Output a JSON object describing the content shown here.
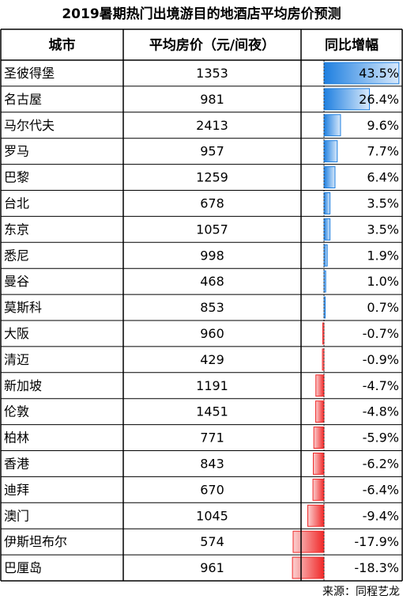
{
  "title": "2019暑期热门出境游目的地酒店平均房价预测",
  "table": {
    "headers": [
      "城市",
      "平均房价（元/间夜）",
      "同比增幅"
    ],
    "rows": [
      {
        "city": "圣彼得堡",
        "price": 1353,
        "change": 43.5,
        "change_label": "43.5%"
      },
      {
        "city": "名古屋",
        "price": 981,
        "change": 26.4,
        "change_label": "26.4%"
      },
      {
        "city": "马尔代夫",
        "price": 2413,
        "change": 9.6,
        "change_label": "9.6%"
      },
      {
        "city": "罗马",
        "price": 957,
        "change": 7.7,
        "change_label": "7.7%"
      },
      {
        "city": "巴黎",
        "price": 1259,
        "change": 6.4,
        "change_label": "6.4%"
      },
      {
        "city": "台北",
        "price": 678,
        "change": 3.5,
        "change_label": "3.5%"
      },
      {
        "city": "东京",
        "price": 1057,
        "change": 3.5,
        "change_label": "3.5%"
      },
      {
        "city": "悉尼",
        "price": 998,
        "change": 1.9,
        "change_label": "1.9%"
      },
      {
        "city": "曼谷",
        "price": 468,
        "change": 1.0,
        "change_label": "1.0%"
      },
      {
        "city": "莫斯科",
        "price": 853,
        "change": 0.7,
        "change_label": "0.7%"
      },
      {
        "city": "大阪",
        "price": 960,
        "change": -0.7,
        "change_label": "-0.7%"
      },
      {
        "city": "清迈",
        "price": 429,
        "change": -0.9,
        "change_label": "-0.9%"
      },
      {
        "city": "新加坡",
        "price": 1191,
        "change": -4.7,
        "change_label": "-4.7%"
      },
      {
        "city": "伦敦",
        "price": 1451,
        "change": -4.8,
        "change_label": "-4.8%"
      },
      {
        "city": "柏林",
        "price": 771,
        "change": -5.9,
        "change_label": "-5.9%"
      },
      {
        "city": "香港",
        "price": 843,
        "change": -6.2,
        "change_label": "-6.2%"
      },
      {
        "city": "迪拜",
        "price": 670,
        "change": -6.4,
        "change_label": "-6.4%"
      },
      {
        "city": "澳门",
        "price": 1045,
        "change": -9.4,
        "change_label": "-9.4%"
      },
      {
        "city": "伊斯坦布尔",
        "price": 574,
        "change": -17.9,
        "change_label": "-17.9%"
      },
      {
        "city": "巴厘岛",
        "price": 961,
        "change": -18.3,
        "change_label": "-18.3%"
      }
    ]
  },
  "source": "来源：同程艺龙"
}
